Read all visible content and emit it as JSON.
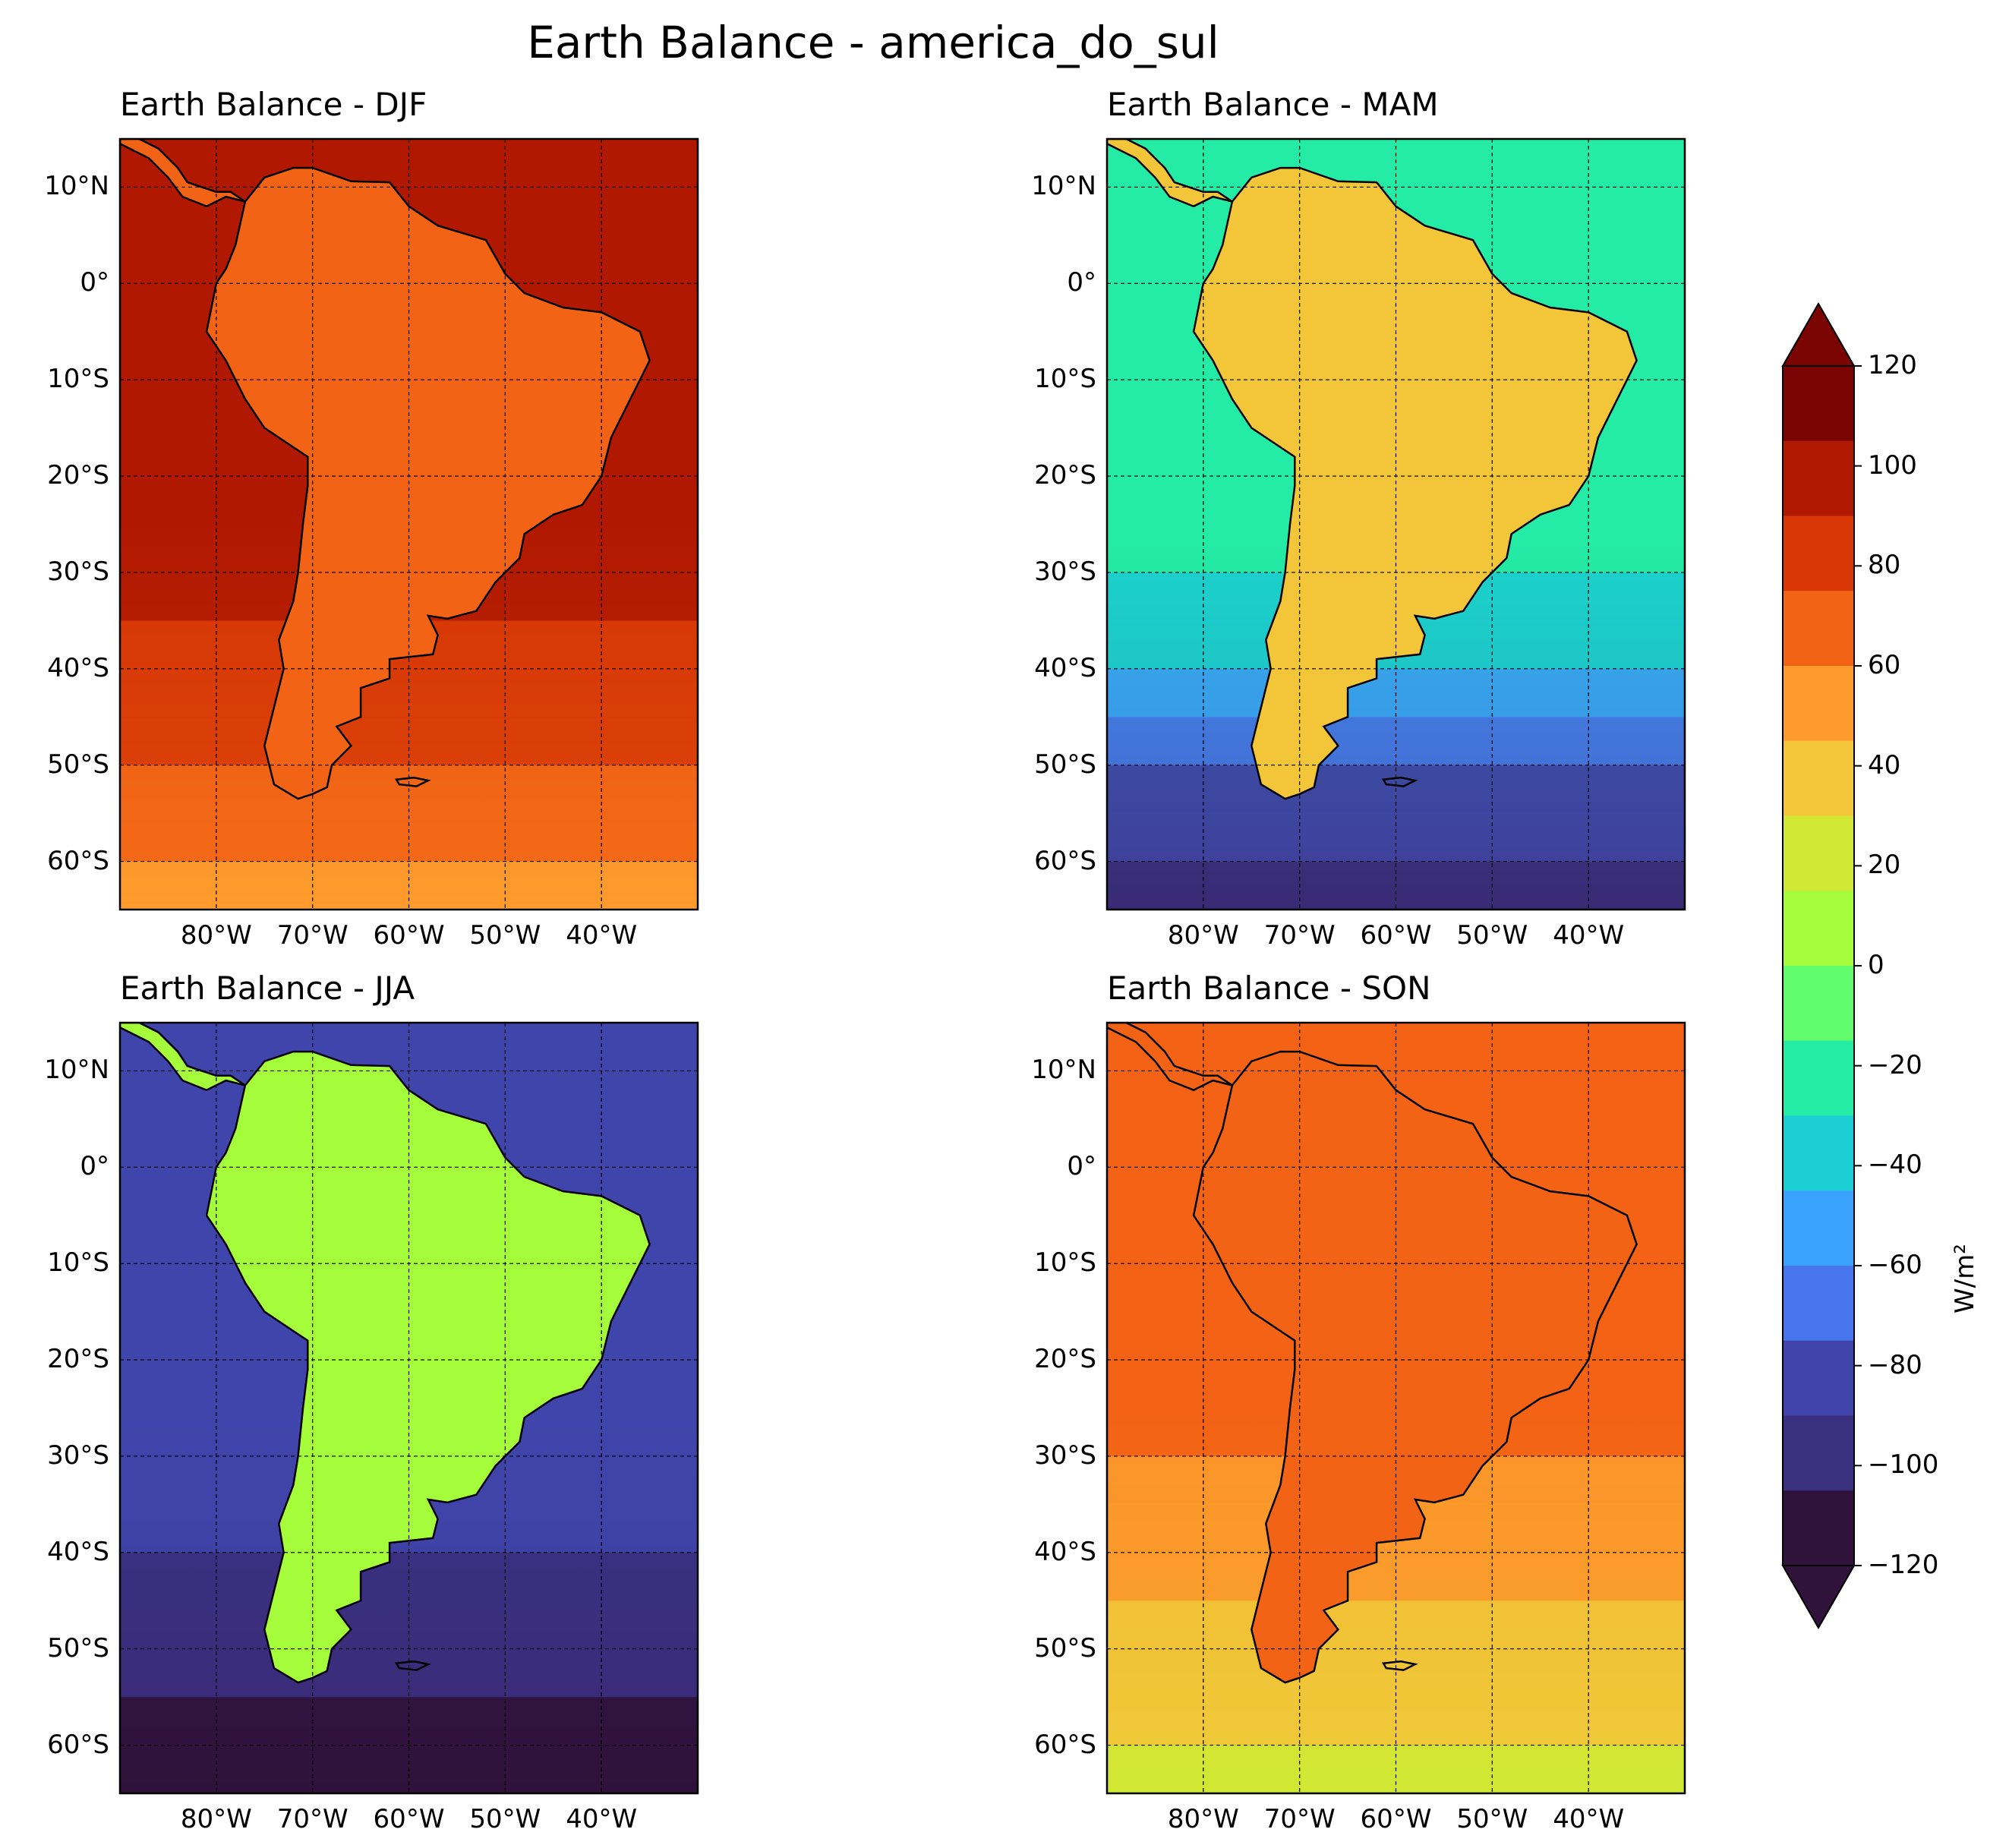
{
  "figure": {
    "title": "Earth Balance - america_do_sul",
    "colorbar": {
      "unit": "W/m²",
      "ticks": [
        "120",
        "100",
        "80",
        "60",
        "40",
        "20",
        "0",
        "−20",
        "−40",
        "−60",
        "−80",
        "−100",
        "−120"
      ],
      "vmin": -120,
      "vmax": 120,
      "levels": 25,
      "extend": "both",
      "colormap": "turbo",
      "colors": [
        "#30123b",
        "#3b2f80",
        "#4145ab",
        "#4675ed",
        "#39a2fc",
        "#1bcfd4",
        "#24eca6",
        "#61fc6c",
        "#a4fc3b",
        "#d1e834",
        "#f3c63a",
        "#fe9b2d",
        "#f36315",
        "#d93806",
        "#b11901",
        "#7a0402"
      ]
    },
    "axes": {
      "lat_ticks": [
        "10°N",
        "0°",
        "10°S",
        "20°S",
        "30°S",
        "40°S",
        "50°S",
        "60°S"
      ],
      "lon_ticks": [
        "80°W",
        "70°W",
        "60°W",
        "50°W",
        "40°W"
      ],
      "lat_range": [
        -65,
        15
      ],
      "lon_range": [
        -90,
        -30
      ],
      "gridlines": "dashed"
    },
    "panels": [
      {
        "title": "Earth Balance - DJF",
        "season": "DJF",
        "ocean_value": 100,
        "land_value": 70,
        "south_value": 50
      },
      {
        "title": "Earth Balance - MAM",
        "season": "MAM",
        "ocean_value": -20,
        "land_value": 40,
        "south_value": -110
      },
      {
        "title": "Earth Balance - JJA",
        "season": "JJA",
        "ocean_value": -80,
        "land_value": 10,
        "south_value": -120
      },
      {
        "title": "Earth Balance - SON",
        "season": "SON",
        "ocean_value": 60,
        "land_value": 70,
        "south_value": 20
      }
    ]
  }
}
